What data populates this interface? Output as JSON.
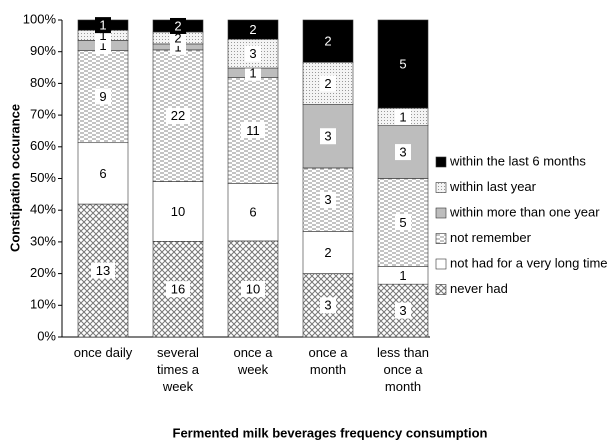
{
  "chart_data": {
    "type": "stacked100",
    "x_label": "Fermented milk beverages frequency consumption",
    "y_label": "Constipation occurance",
    "categories": [
      "once daily",
      "several times a week",
      "once a week",
      "once a month",
      "less than once a month"
    ],
    "series": [
      {
        "name": "never had",
        "color": "crosshatch",
        "values": [
          13,
          16,
          10,
          3,
          3
        ]
      },
      {
        "name": "not had for a very long time",
        "color": "white",
        "values": [
          6,
          10,
          6,
          2,
          1
        ]
      },
      {
        "name": "not remember",
        "color": "dashes",
        "values": [
          9,
          22,
          11,
          3,
          5
        ]
      },
      {
        "name": "within more than one year",
        "color": "gray",
        "values": [
          1,
          1,
          1,
          3,
          3
        ]
      },
      {
        "name": "within last year",
        "color": "dots",
        "values": [
          1,
          2,
          3,
          2,
          1
        ]
      },
      {
        "name": "within the last 6 months",
        "color": "black",
        "values": [
          1,
          2,
          2,
          2,
          5
        ]
      }
    ],
    "ylim": [
      0,
      100
    ],
    "yticks": [
      {
        "value": 0,
        "label": "0%"
      },
      {
        "value": 10,
        "label": "10%"
      },
      {
        "value": 20,
        "label": "20%"
      },
      {
        "value": 30,
        "label": "30%"
      },
      {
        "value": 40,
        "label": "40%"
      },
      {
        "value": 50,
        "label": "50%"
      },
      {
        "value": 60,
        "label": "60%"
      },
      {
        "value": 70,
        "label": "70%"
      },
      {
        "value": 80,
        "label": "80%"
      },
      {
        "value": 90,
        "label": "90%"
      },
      {
        "value": 100,
        "label": "100%"
      }
    ]
  }
}
